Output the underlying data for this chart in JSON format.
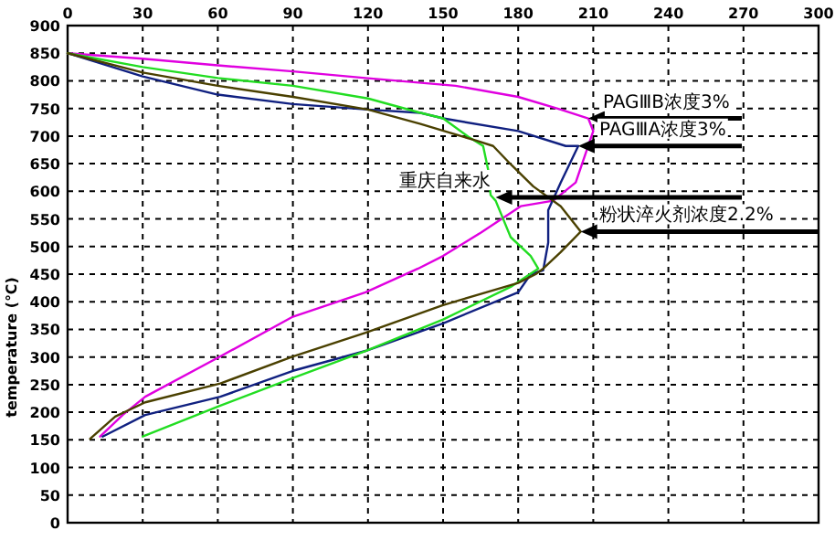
{
  "chart_data": {
    "type": "line",
    "ylabel": "temperature (℃)",
    "xlim": [
      0,
      300
    ],
    "xticks": [
      0,
      30,
      60,
      90,
      120,
      150,
      180,
      210,
      240,
      270,
      300
    ],
    "ylim": [
      0,
      900
    ],
    "yticks": [
      0,
      50,
      100,
      150,
      200,
      250,
      300,
      350,
      400,
      450,
      500,
      550,
      600,
      650,
      700,
      750,
      800,
      850,
      900
    ],
    "grid": true,
    "series": [
      {
        "color": "#e000e0",
        "x": [
          0,
          30,
          60,
          90,
          119,
          155,
          180,
          197,
          208,
          210,
          203,
          194,
          181,
          165,
          150,
          140,
          119,
          90,
          61,
          31,
          22,
          13
        ],
        "values": [
          850,
          840,
          828,
          817,
          805,
          791,
          771,
          748,
          732,
          709,
          616,
          583,
          573,
          525,
          483,
          460,
          417,
          373,
          301,
          228,
          195,
          156
        ]
      },
      {
        "color": "#102080",
        "x": [
          0,
          30,
          60,
          90,
          120,
          141,
          150,
          180,
          199,
          204,
          197,
          192,
          192,
          190,
          185,
          180,
          150,
          119,
          90,
          61,
          31,
          14
        ],
        "values": [
          850,
          808,
          775,
          758,
          748,
          742,
          732,
          709,
          682,
          682,
          616,
          566,
          507,
          457,
          450,
          417,
          361,
          311,
          275,
          228,
          195,
          156
        ]
      },
      {
        "color": "#22dd22",
        "x": [
          0,
          30,
          60,
          90,
          120,
          141,
          150,
          160,
          166,
          168,
          169,
          171,
          177,
          185,
          188,
          177,
          150,
          119,
          90,
          61,
          30
        ],
        "values": [
          850,
          825,
          805,
          791,
          768,
          742,
          732,
          699,
          682,
          639,
          593,
          583,
          517,
          483,
          460,
          427,
          368,
          311,
          262,
          212,
          156
        ]
      },
      {
        "color": "#4a4000",
        "x": [
          0,
          30,
          60,
          90,
          120,
          141,
          163,
          170,
          177,
          186,
          197,
          205,
          197,
          190,
          187,
          180,
          150,
          119,
          90,
          61,
          31,
          19,
          9
        ],
        "values": [
          850,
          815,
          791,
          771,
          748,
          722,
          692,
          682,
          649,
          609,
          573,
          527,
          490,
          460,
          450,
          434,
          394,
          344,
          301,
          252,
          218,
          192,
          152
        ]
      }
    ],
    "annotations": [
      {
        "text": "PAGⅢB浓度3%",
        "x": 208,
        "y": 732
      },
      {
        "text": "PAGⅢA浓度3%",
        "x": 204,
        "y": 682
      },
      {
        "text": "重庆自来水",
        "x": 171,
        "y": 589
      },
      {
        "text": "粉状淬火剂浓度2.2%",
        "x": 205,
        "y": 527
      }
    ]
  }
}
